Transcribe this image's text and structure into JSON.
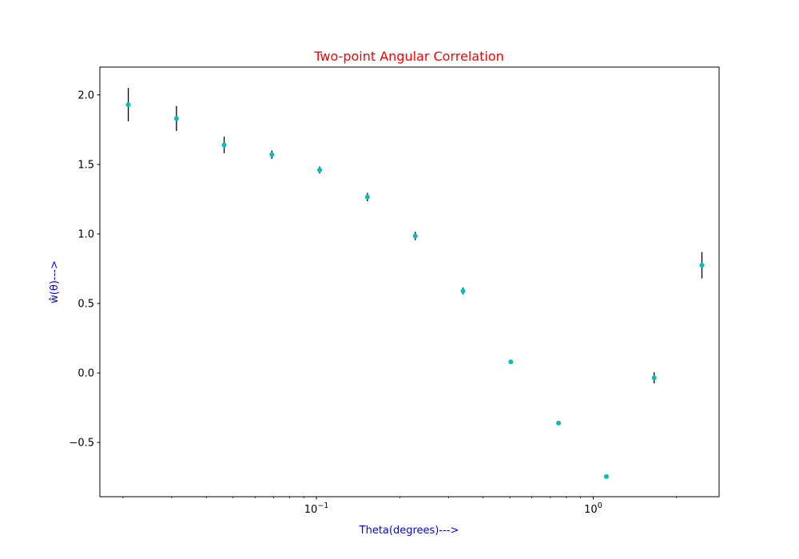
{
  "chart_data": {
    "type": "scatter",
    "title": "Two-point Angular Correlation",
    "xlabel": "Theta(degrees)--->",
    "ylabel": "ŵ(θ)--->",
    "xscale": "log",
    "xlim": [
      0.0165,
      2.85
    ],
    "ylim": [
      -0.89,
      2.2
    ],
    "grid": false,
    "legend": "none",
    "colors": {
      "title": "#ff0000",
      "axis_labels": "#0000ff",
      "markers": "#00bfbf",
      "error_bars": "#000000",
      "frame": "#000000"
    },
    "xticks": [
      {
        "value": 0.1,
        "base": "10",
        "exp": "−1"
      },
      {
        "value": 1.0,
        "base": "10",
        "exp": "0"
      }
    ],
    "yticks": [
      {
        "value": -0.5,
        "label": "−0.5"
      },
      {
        "value": 0.0,
        "label": "0.0"
      },
      {
        "value": 0.5,
        "label": "0.5"
      },
      {
        "value": 1.0,
        "label": "1.0"
      },
      {
        "value": 1.5,
        "label": "1.5"
      },
      {
        "value": 2.0,
        "label": "2.0"
      }
    ],
    "points": [
      {
        "x": 0.0209,
        "y": 1.93,
        "err": 0.12
      },
      {
        "x": 0.0312,
        "y": 1.83,
        "err": 0.09
      },
      {
        "x": 0.0464,
        "y": 1.64,
        "err": 0.06
      },
      {
        "x": 0.069,
        "y": 1.57,
        "err": 0.03
      },
      {
        "x": 0.1027,
        "y": 1.46,
        "err": 0.025
      },
      {
        "x": 0.1528,
        "y": 1.265,
        "err": 0.03
      },
      {
        "x": 0.2275,
        "y": 0.985,
        "err": 0.03
      },
      {
        "x": 0.3385,
        "y": 0.59,
        "err": 0.025
      },
      {
        "x": 0.5038,
        "y": 0.08,
        "err": 0.008
      },
      {
        "x": 0.7497,
        "y": -0.36,
        "err": 0.006
      },
      {
        "x": 1.1157,
        "y": -0.745,
        "err": 0.01
      },
      {
        "x": 1.6602,
        "y": -0.035,
        "err": 0.04
      },
      {
        "x": 2.4705,
        "y": 0.775,
        "err": 0.095
      }
    ]
  }
}
